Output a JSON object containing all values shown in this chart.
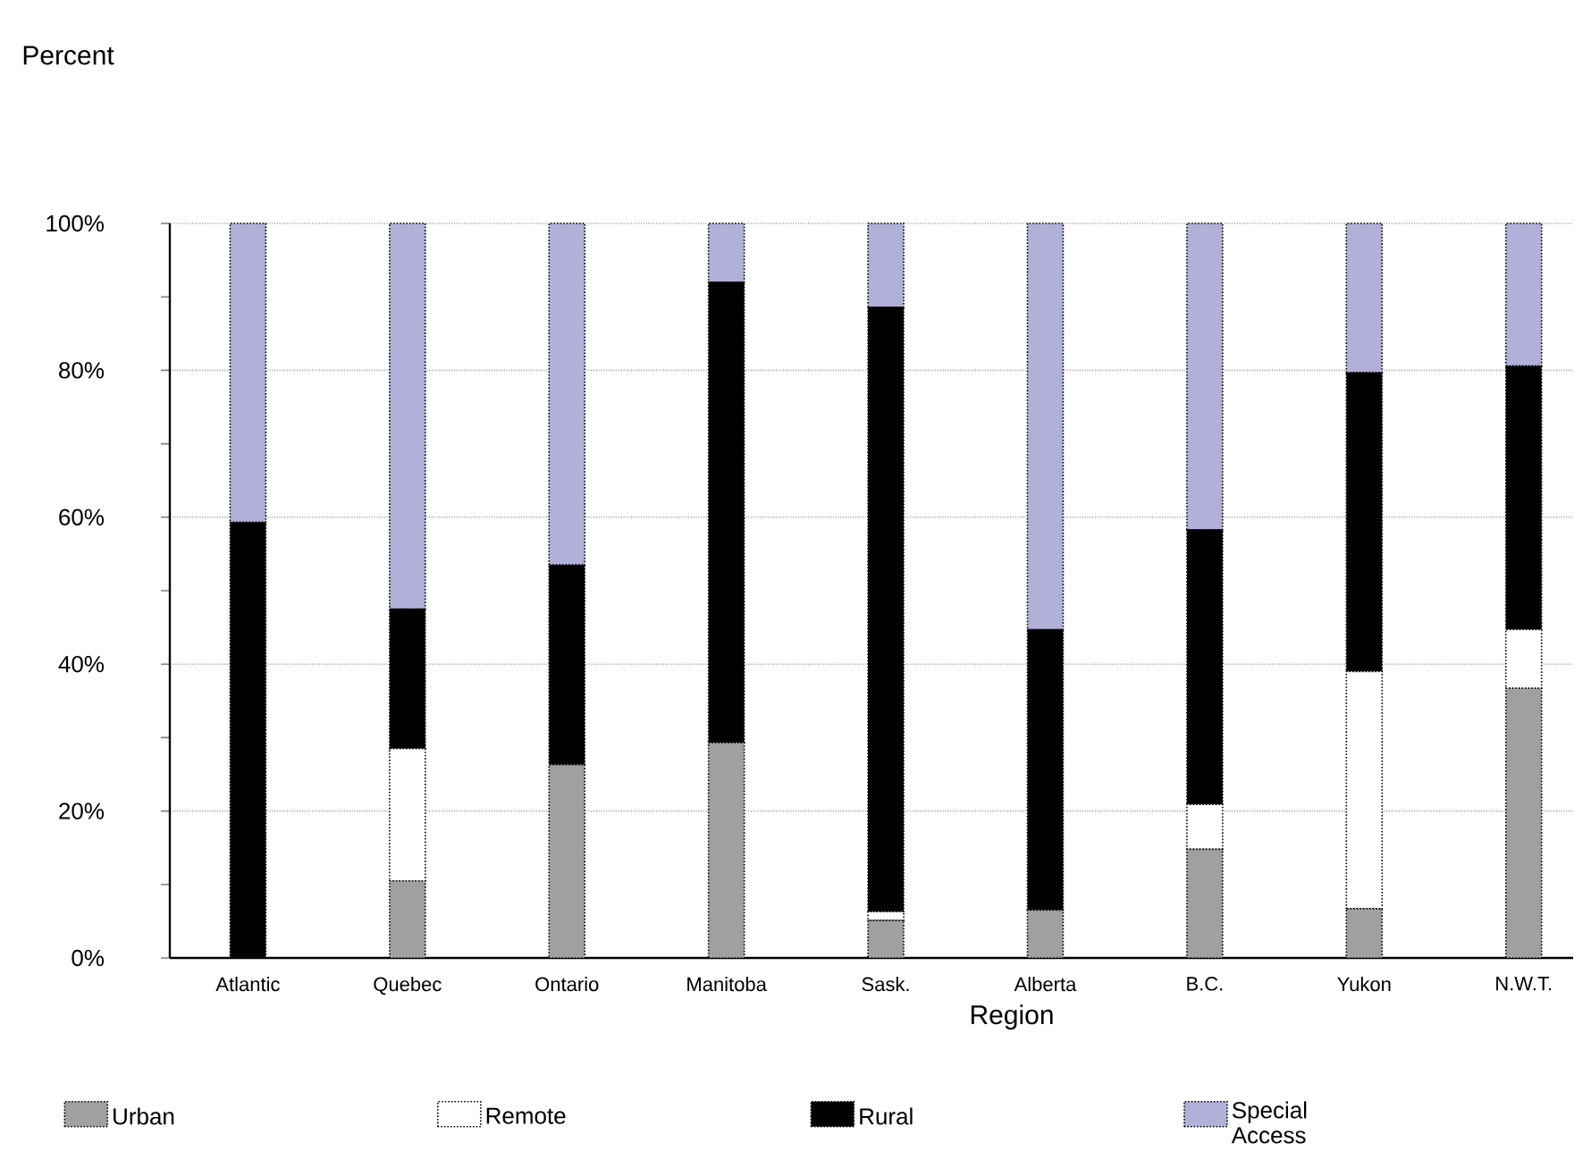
{
  "chart_data": {
    "type": "bar",
    "stacked": true,
    "annotations": [
      "Percent"
    ],
    "xlabel": "Region",
    "categories": [
      "Atlantic",
      "Quebec",
      "Ontario",
      "Manitoba",
      "Sask.",
      "Alberta",
      "B.C.",
      "Yukon",
      "N.W.T."
    ],
    "series": [
      {
        "name": "Urban",
        "color": "#a0a0a0",
        "values": [
          0,
          10.5,
          26.3,
          29.3,
          5.1,
          6.5,
          14.8,
          6.7,
          36.7
        ]
      },
      {
        "name": "Remote",
        "color": "#ffffff",
        "values": [
          0,
          18,
          0,
          0,
          1.2,
          0,
          6.1,
          32.3,
          8
        ]
      },
      {
        "name": "Rural",
        "color": "#000000",
        "values": [
          59.3,
          19,
          27.2,
          62.7,
          82.3,
          38.2,
          37.4,
          40.7,
          35.9
        ]
      },
      {
        "name": "Special Access",
        "color": "#b0b0d8",
        "values": [
          40.7,
          52.5,
          46.5,
          8,
          11.4,
          55.3,
          41.7,
          20.3,
          19.4
        ]
      }
    ],
    "ylim": [
      0,
      100
    ],
    "yticks": [
      {
        "value": 0,
        "label": "0%"
      },
      {
        "value": 10,
        "label": null
      },
      {
        "value": 20,
        "label": "20%"
      },
      {
        "value": 30,
        "label": null
      },
      {
        "value": 40,
        "label": "40%"
      },
      {
        "value": 50,
        "label": null
      },
      {
        "value": 60,
        "label": "60%"
      },
      {
        "value": 70,
        "label": null
      },
      {
        "value": 80,
        "label": "80%"
      },
      {
        "value": 90,
        "label": null
      },
      {
        "value": 100,
        "label": "100%"
      }
    ],
    "grid": "y",
    "legend": "bottom"
  }
}
